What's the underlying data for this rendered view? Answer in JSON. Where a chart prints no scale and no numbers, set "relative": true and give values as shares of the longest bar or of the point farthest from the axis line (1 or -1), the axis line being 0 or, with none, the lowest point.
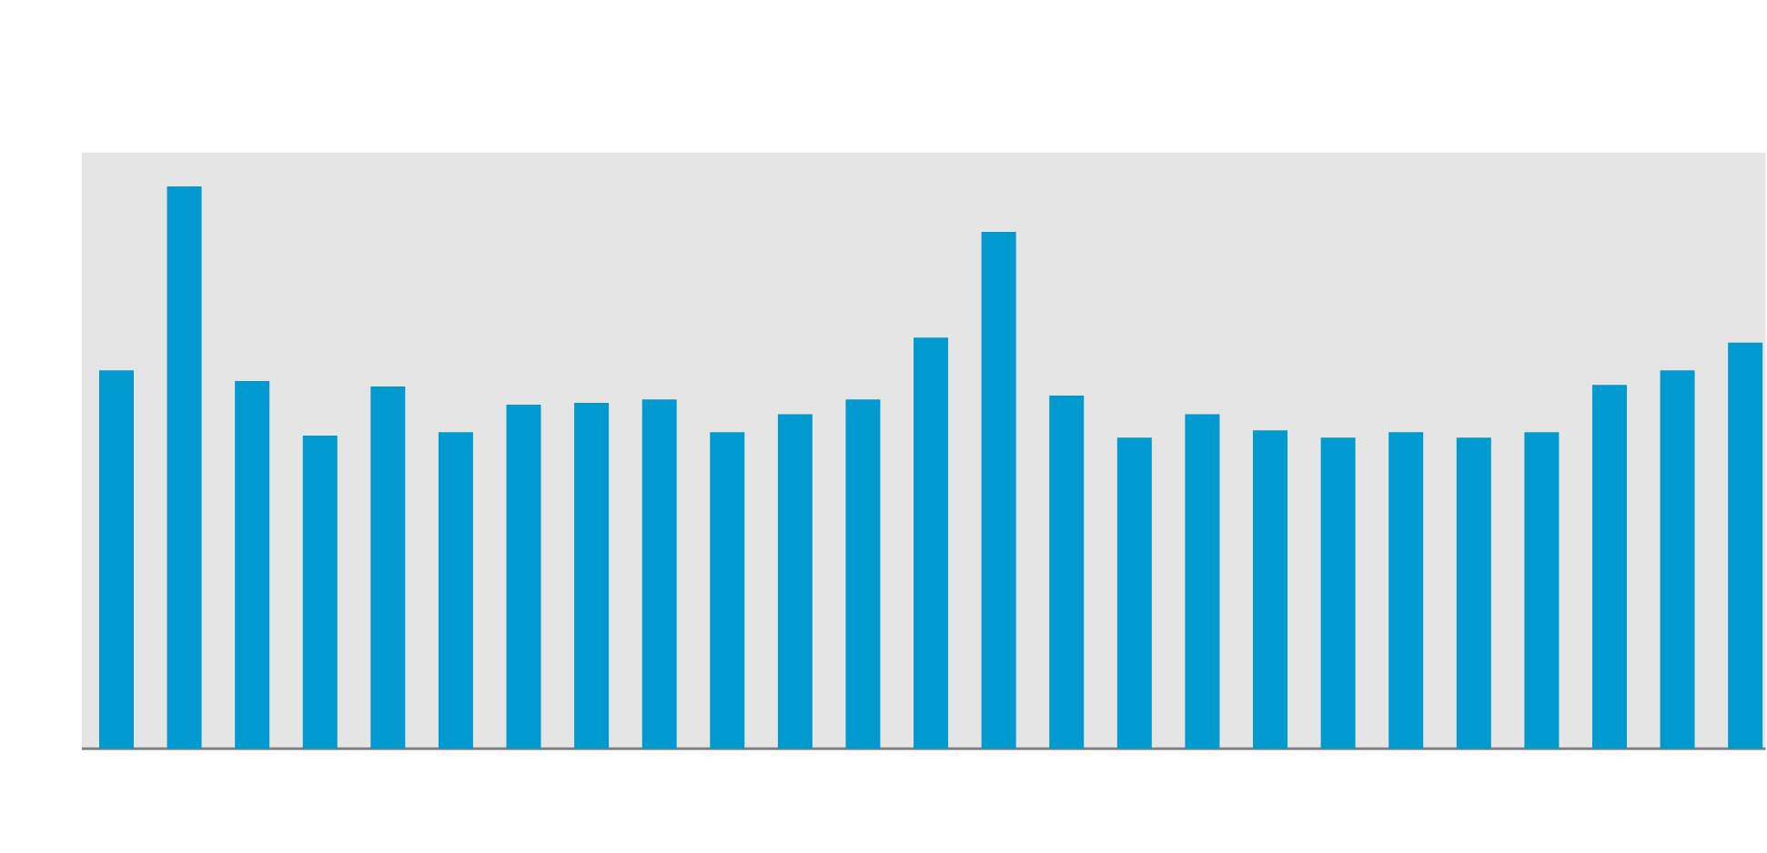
{
  "chart_data": {
    "type": "bar",
    "relative": true,
    "color": "#0099d0",
    "categories": [
      null,
      null,
      null,
      null,
      null,
      null,
      null,
      null,
      null,
      null,
      null,
      null,
      null,
      null,
      null,
      null,
      null,
      null,
      null,
      null,
      null,
      null,
      null,
      null,
      null
    ],
    "values": [
      0.673,
      1,
      0.654,
      0.557,
      0.644,
      0.563,
      0.612,
      0.615,
      0.621,
      0.563,
      0.595,
      0.621,
      0.731,
      0.919,
      0.628,
      0.553,
      0.595,
      0.566,
      0.553,
      0.563,
      0.553,
      0.563,
      0.647,
      0.673,
      0.722
    ]
  }
}
